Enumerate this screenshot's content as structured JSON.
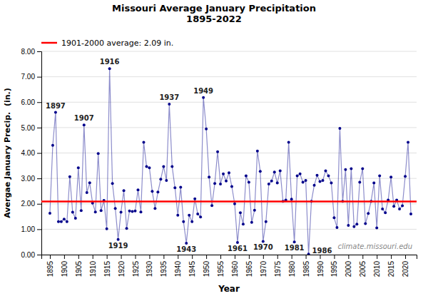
{
  "chart_data": {
    "type": "line",
    "title": "Missouri Average January Precipitation\n1895-2022",
    "x_label": "Year",
    "y_label": "Avergae January Precip.  (in.)",
    "x": [
      1895,
      1896,
      1897,
      1898,
      1899,
      1900,
      1901,
      1902,
      1903,
      1904,
      1905,
      1906,
      1907,
      1908,
      1909,
      1910,
      1911,
      1912,
      1913,
      1914,
      1915,
      1916,
      1917,
      1918,
      1919,
      1920,
      1921,
      1922,
      1923,
      1924,
      1925,
      1926,
      1927,
      1928,
      1929,
      1930,
      1931,
      1932,
      1933,
      1934,
      1935,
      1936,
      1937,
      1938,
      1939,
      1940,
      1941,
      1942,
      1943,
      1944,
      1945,
      1946,
      1947,
      1948,
      1949,
      1950,
      1951,
      1952,
      1953,
      1954,
      1955,
      1956,
      1957,
      1958,
      1959,
      1960,
      1961,
      1962,
      1963,
      1964,
      1965,
      1966,
      1967,
      1968,
      1969,
      1970,
      1971,
      1972,
      1973,
      1974,
      1975,
      1976,
      1977,
      1978,
      1979,
      1980,
      1981,
      1982,
      1983,
      1984,
      1985,
      1986,
      1987,
      1988,
      1989,
      1990,
      1991,
      1992,
      1993,
      1994,
      1995,
      1996,
      1997,
      1998,
      1999,
      2000,
      2001,
      2002,
      2003,
      2004,
      2005,
      2006,
      2007,
      2008,
      2009,
      2010,
      2011,
      2012,
      2013,
      2014,
      2015,
      2016,
      2017,
      2018,
      2019,
      2020,
      2021,
      2022
    ],
    "series": [
      {
        "color": "#00008B",
        "marker": "circle",
        "values": [
          1.63,
          4.3,
          5.6,
          1.3,
          1.3,
          1.4,
          1.3,
          3.07,
          1.67,
          1.43,
          3.42,
          1.73,
          5.1,
          2.44,
          2.83,
          2.03,
          1.68,
          3.98,
          1.73,
          2.13,
          1.02,
          7.32,
          2.8,
          1.82,
          0.6,
          1.67,
          2.52,
          1.03,
          1.72,
          1.7,
          1.72,
          2.55,
          1.68,
          4.42,
          3.47,
          3.42,
          2.49,
          1.82,
          2.46,
          2.97,
          3.47,
          2.92,
          5.92,
          3.47,
          2.63,
          1.55,
          2.65,
          1.3,
          0.45,
          1.55,
          1.3,
          2.2,
          1.6,
          1.48,
          6.18,
          4.95,
          3.05,
          1.93,
          2.8,
          4.05,
          2.78,
          3.18,
          2.9,
          3.22,
          2.68,
          2.0,
          0.48,
          1.65,
          1.2,
          3.1,
          2.85,
          1.27,
          1.75,
          4.08,
          3.28,
          0.52,
          1.3,
          2.78,
          2.9,
          3.25,
          2.82,
          3.3,
          2.1,
          2.15,
          4.42,
          2.18,
          0.5,
          3.1,
          3.18,
          2.85,
          2.92,
          0.02,
          2.1,
          2.73,
          3.12,
          2.88,
          2.92,
          3.3,
          3.1,
          2.82,
          1.45,
          1.07,
          4.97,
          2.1,
          3.35,
          1.15,
          3.38,
          1.1,
          1.2,
          2.85,
          3.38,
          1.22,
          1.62,
          2.1,
          2.82,
          1.05,
          3.1,
          1.8,
          1.65,
          2.15,
          3.05,
          1.9,
          2.15,
          1.8,
          1.92,
          3.08,
          4.42,
          1.6
        ]
      }
    ],
    "average_line": {
      "name": "1901-2000 average: 2.09 in.",
      "value": 2.09,
      "color": "#FF0000"
    },
    "annotations": [
      {
        "text": "1897",
        "x": 1897,
        "y": 5.6
      },
      {
        "text": "1907",
        "x": 1907,
        "y": 5.1
      },
      {
        "text": "1916",
        "x": 1916,
        "y": 7.32
      },
      {
        "text": "1937",
        "x": 1937,
        "y": 5.92
      },
      {
        "text": "1949",
        "x": 1949,
        "y": 6.18
      },
      {
        "text": "1919",
        "x": 1919,
        "y": 0.6
      },
      {
        "text": "1943",
        "x": 1943,
        "y": 0.45
      },
      {
        "text": "1961",
        "x": 1961,
        "y": 0.48
      },
      {
        "text": "1970",
        "x": 1970,
        "y": 0.52
      },
      {
        "text": "1981",
        "x": 1981,
        "y": 0.5
      },
      {
        "text": "1986",
        "x": 1986,
        "y": 0.02
      },
      {
        "text": "climate.missouri.edu"
      }
    ],
    "xlim": [
      1892,
      2024
    ],
    "xticks": [
      1895,
      1900,
      1905,
      1910,
      1915,
      1920,
      1925,
      1930,
      1935,
      1940,
      1945,
      1950,
      1955,
      1960,
      1965,
      1970,
      1975,
      1980,
      1985,
      1990,
      1995,
      2000,
      2005,
      2010,
      2015,
      2020
    ],
    "ylim": [
      0.0,
      8.0
    ],
    "yticks": [
      {
        "value": 0.0,
        "label": "0.00"
      },
      {
        "value": 1.0,
        "label": "1.00"
      },
      {
        "value": 2.0,
        "label": "2.00"
      },
      {
        "value": 3.0,
        "label": "3.00"
      },
      {
        "value": 4.0,
        "label": "4.00"
      },
      {
        "value": 5.0,
        "label": "5.00"
      },
      {
        "value": 6.0,
        "label": "6.00"
      },
      {
        "value": 7.0,
        "label": "7.00"
      },
      {
        "value": 8.0,
        "label": "8.00"
      }
    ],
    "grid": "y",
    "legend": "top-left"
  }
}
